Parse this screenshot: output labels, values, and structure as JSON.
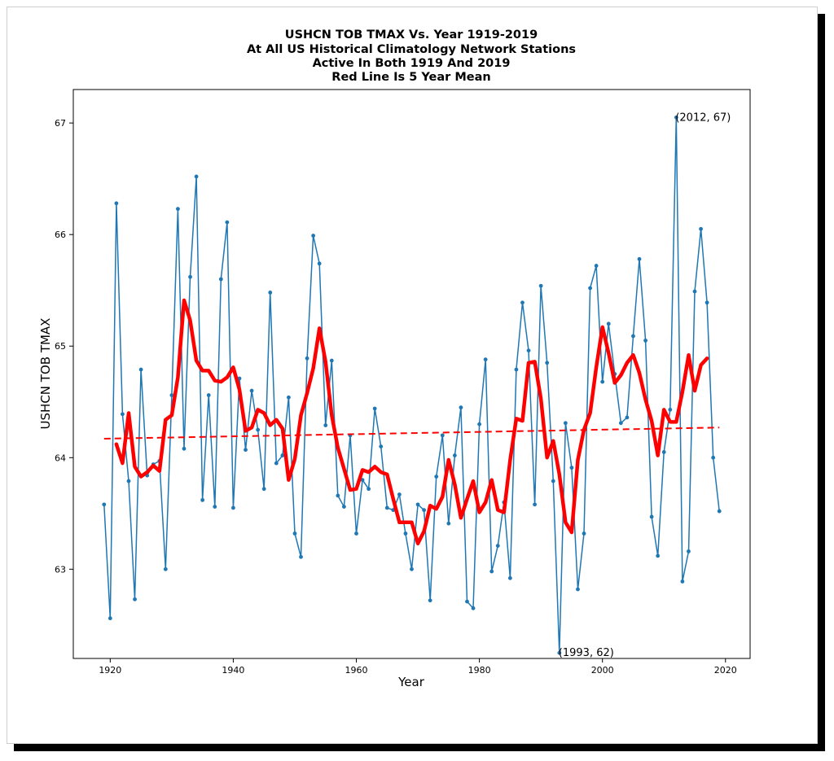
{
  "chart_data": {
    "type": "line",
    "title": [
      "USHCN TOB TMAX Vs. Year 1919-2019",
      "At All US Historical Climatology Network Stations",
      "Active In Both 1919 And 2019",
      "Red Line Is 5 Year Mean"
    ],
    "xlabel": "Year",
    "ylabel": "USHCN TOB TMAX",
    "xlim": [
      1914,
      2024
    ],
    "ylim": [
      62.2,
      67.3
    ],
    "xticks": [
      1920,
      1940,
      1960,
      1980,
      2000,
      2020
    ],
    "yticks": [
      63,
      64,
      65,
      66,
      67
    ],
    "grid": false,
    "colors": {
      "annual": "#1f77b4",
      "mean": "#ff0000",
      "trend": "#ff0000"
    },
    "series": [
      {
        "style": "line-with-dots",
        "x": [
          1919,
          1920,
          1921,
          1922,
          1923,
          1924,
          1925,
          1926,
          1927,
          1928,
          1929,
          1930,
          1931,
          1932,
          1933,
          1934,
          1935,
          1936,
          1937,
          1938,
          1939,
          1940,
          1941,
          1942,
          1943,
          1944,
          1945,
          1946,
          1947,
          1948,
          1949,
          1950,
          1951,
          1952,
          1953,
          1954,
          1955,
          1956,
          1957,
          1958,
          1959,
          1960,
          1961,
          1962,
          1963,
          1964,
          1965,
          1966,
          1967,
          1968,
          1969,
          1970,
          1971,
          1972,
          1973,
          1974,
          1975,
          1976,
          1977,
          1978,
          1979,
          1980,
          1981,
          1982,
          1983,
          1984,
          1985,
          1986,
          1987,
          1988,
          1989,
          1990,
          1991,
          1992,
          1993,
          1994,
          1995,
          1996,
          1997,
          1998,
          1999,
          2000,
          2001,
          2002,
          2003,
          2004,
          2005,
          2006,
          2007,
          2008,
          2009,
          2010,
          2011,
          2012,
          2013,
          2014,
          2015,
          2016,
          2017,
          2018,
          2019
        ],
        "y": [
          63.58,
          62.56,
          66.28,
          64.39,
          63.79,
          62.73,
          64.79,
          63.84,
          63.94,
          63.97,
          63.0,
          64.56,
          66.23,
          64.08,
          65.62,
          66.52,
          63.62,
          64.56,
          63.56,
          65.6,
          66.11,
          63.55,
          64.71,
          64.07,
          64.6,
          64.25,
          63.72,
          65.48,
          63.95,
          64.02,
          64.54,
          63.32,
          63.11,
          64.89,
          65.99,
          65.74,
          64.29,
          64.87,
          63.66,
          63.56,
          64.2,
          63.32,
          63.8,
          63.72,
          64.44,
          64.1,
          63.55,
          63.53,
          63.67,
          63.32,
          63.0,
          63.58,
          63.53,
          62.72,
          63.83,
          64.2,
          63.41,
          64.02,
          64.45,
          62.71,
          62.65,
          64.3,
          64.88,
          62.98,
          63.21,
          63.6,
          62.92,
          64.79,
          65.39,
          64.96,
          63.58,
          65.54,
          64.85,
          63.79,
          62.25,
          64.31,
          63.91,
          62.82,
          63.32,
          65.52,
          65.72,
          64.68,
          65.2,
          64.75,
          64.31,
          64.36,
          65.09,
          65.78,
          65.05,
          63.47,
          63.12,
          64.05,
          64.43,
          67.05,
          62.89,
          63.16,
          65.49,
          66.05,
          65.39,
          64.0,
          63.52
        ]
      },
      {
        "style": "thick-line",
        "x": [
          1921,
          1922,
          1923,
          1924,
          1925,
          1926,
          1927,
          1928,
          1929,
          1930,
          1931,
          1932,
          1933,
          1934,
          1935,
          1936,
          1937,
          1938,
          1939,
          1940,
          1941,
          1942,
          1943,
          1944,
          1945,
          1946,
          1947,
          1948,
          1949,
          1950,
          1951,
          1952,
          1953,
          1954,
          1955,
          1956,
          1957,
          1958,
          1959,
          1960,
          1961,
          1962,
          1963,
          1964,
          1965,
          1966,
          1967,
          1968,
          1969,
          1970,
          1971,
          1972,
          1973,
          1974,
          1975,
          1976,
          1977,
          1978,
          1979,
          1980,
          1981,
          1982,
          1983,
          1984,
          1985,
          1986,
          1987,
          1988,
          1989,
          1990,
          1991,
          1992,
          1993,
          1994,
          1995,
          1996,
          1997,
          1998,
          1999,
          2000,
          2001,
          2002,
          2003,
          2004,
          2005,
          2006,
          2007,
          2008,
          2009,
          2010,
          2011,
          2012,
          2013,
          2014,
          2015,
          2016,
          2017
        ],
        "y": [
          64.12,
          63.95,
          64.4,
          63.92,
          63.83,
          63.87,
          63.93,
          63.88,
          64.34,
          64.38,
          64.72,
          65.41,
          65.23,
          64.87,
          64.78,
          64.78,
          64.69,
          64.68,
          64.72,
          64.81,
          64.61,
          64.24,
          64.27,
          64.43,
          64.4,
          64.29,
          64.34,
          64.26,
          63.8,
          63.99,
          64.38,
          64.58,
          64.8,
          65.16,
          64.86,
          64.38,
          64.09,
          63.9,
          63.71,
          63.72,
          63.89,
          63.87,
          63.92,
          63.87,
          63.85,
          63.63,
          63.42,
          63.42,
          63.42,
          63.23,
          63.34,
          63.57,
          63.54,
          63.65,
          63.98,
          63.76,
          63.46,
          63.63,
          63.79,
          63.51,
          63.6,
          63.8,
          63.53,
          63.51,
          63.98,
          64.35,
          64.33,
          64.85,
          64.86,
          64.53,
          64.0,
          64.15,
          63.85,
          63.42,
          63.33,
          63.98,
          64.25,
          64.4,
          64.81,
          65.17,
          64.94,
          64.67,
          64.74,
          64.85,
          64.92,
          64.76,
          64.52,
          64.33,
          64.02,
          64.43,
          64.32,
          64.32,
          64.59,
          64.92,
          64.6,
          64.83,
          64.89
        ]
      },
      {
        "style": "dashed",
        "x": [
          1919,
          2019
        ],
        "y": [
          64.17,
          64.27
        ]
      }
    ],
    "annotations": [
      {
        "text": "(2012, 67)",
        "x": 2012,
        "y": 67.05
      },
      {
        "text": "(1993, 62)",
        "x": 1993,
        "y": 62.25
      }
    ]
  }
}
